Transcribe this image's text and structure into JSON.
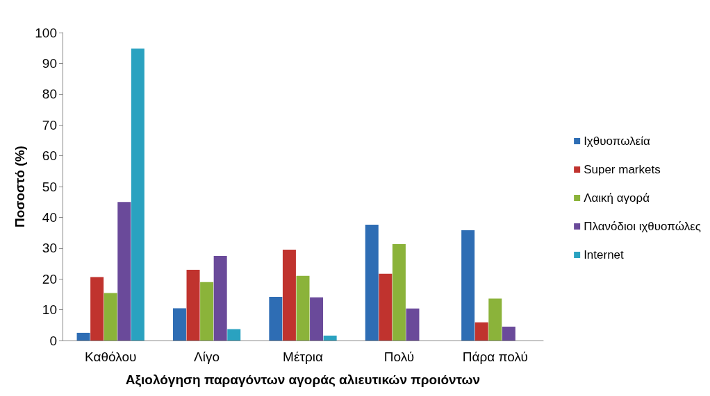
{
  "chart_data": {
    "type": "bar",
    "xlabel": "Αξιολόγηση παραγόντων αγοράς αλιευτικών προιόντων",
    "ylabel": "Ποσοστό (%)",
    "categories": [
      "Καθόλου",
      "Λίγο",
      "Μέτρια",
      "Πολύ",
      "Πάρα πολύ"
    ],
    "series": [
      {
        "name": "Ιχθυοπωλεία",
        "color": "#2e6db4",
        "values": [
          2.5,
          10.5,
          14.2,
          37.6,
          35.8
        ]
      },
      {
        "name": "Super markets",
        "color": "#c0332e",
        "values": [
          20.6,
          23,
          29.5,
          21.7,
          5.9
        ]
      },
      {
        "name": "Λαική αγορά",
        "color": "#8bb33a",
        "values": [
          15.4,
          19,
          21,
          31.3,
          13.6
        ]
      },
      {
        "name": "Πλανόδιοι ιχθυοπώλες",
        "color": "#6a4a9a",
        "values": [
          45,
          27.5,
          14,
          10.4,
          4.5
        ]
      },
      {
        "name": "Internet",
        "color": "#2aa2c0",
        "values": [
          94.8,
          3.7,
          1.6,
          0,
          0
        ]
      }
    ],
    "ylim": [
      0,
      100
    ],
    "yticks": [
      0,
      10,
      20,
      30,
      40,
      50,
      60,
      70,
      80,
      90,
      100
    ],
    "grid": false,
    "legend": "right"
  }
}
